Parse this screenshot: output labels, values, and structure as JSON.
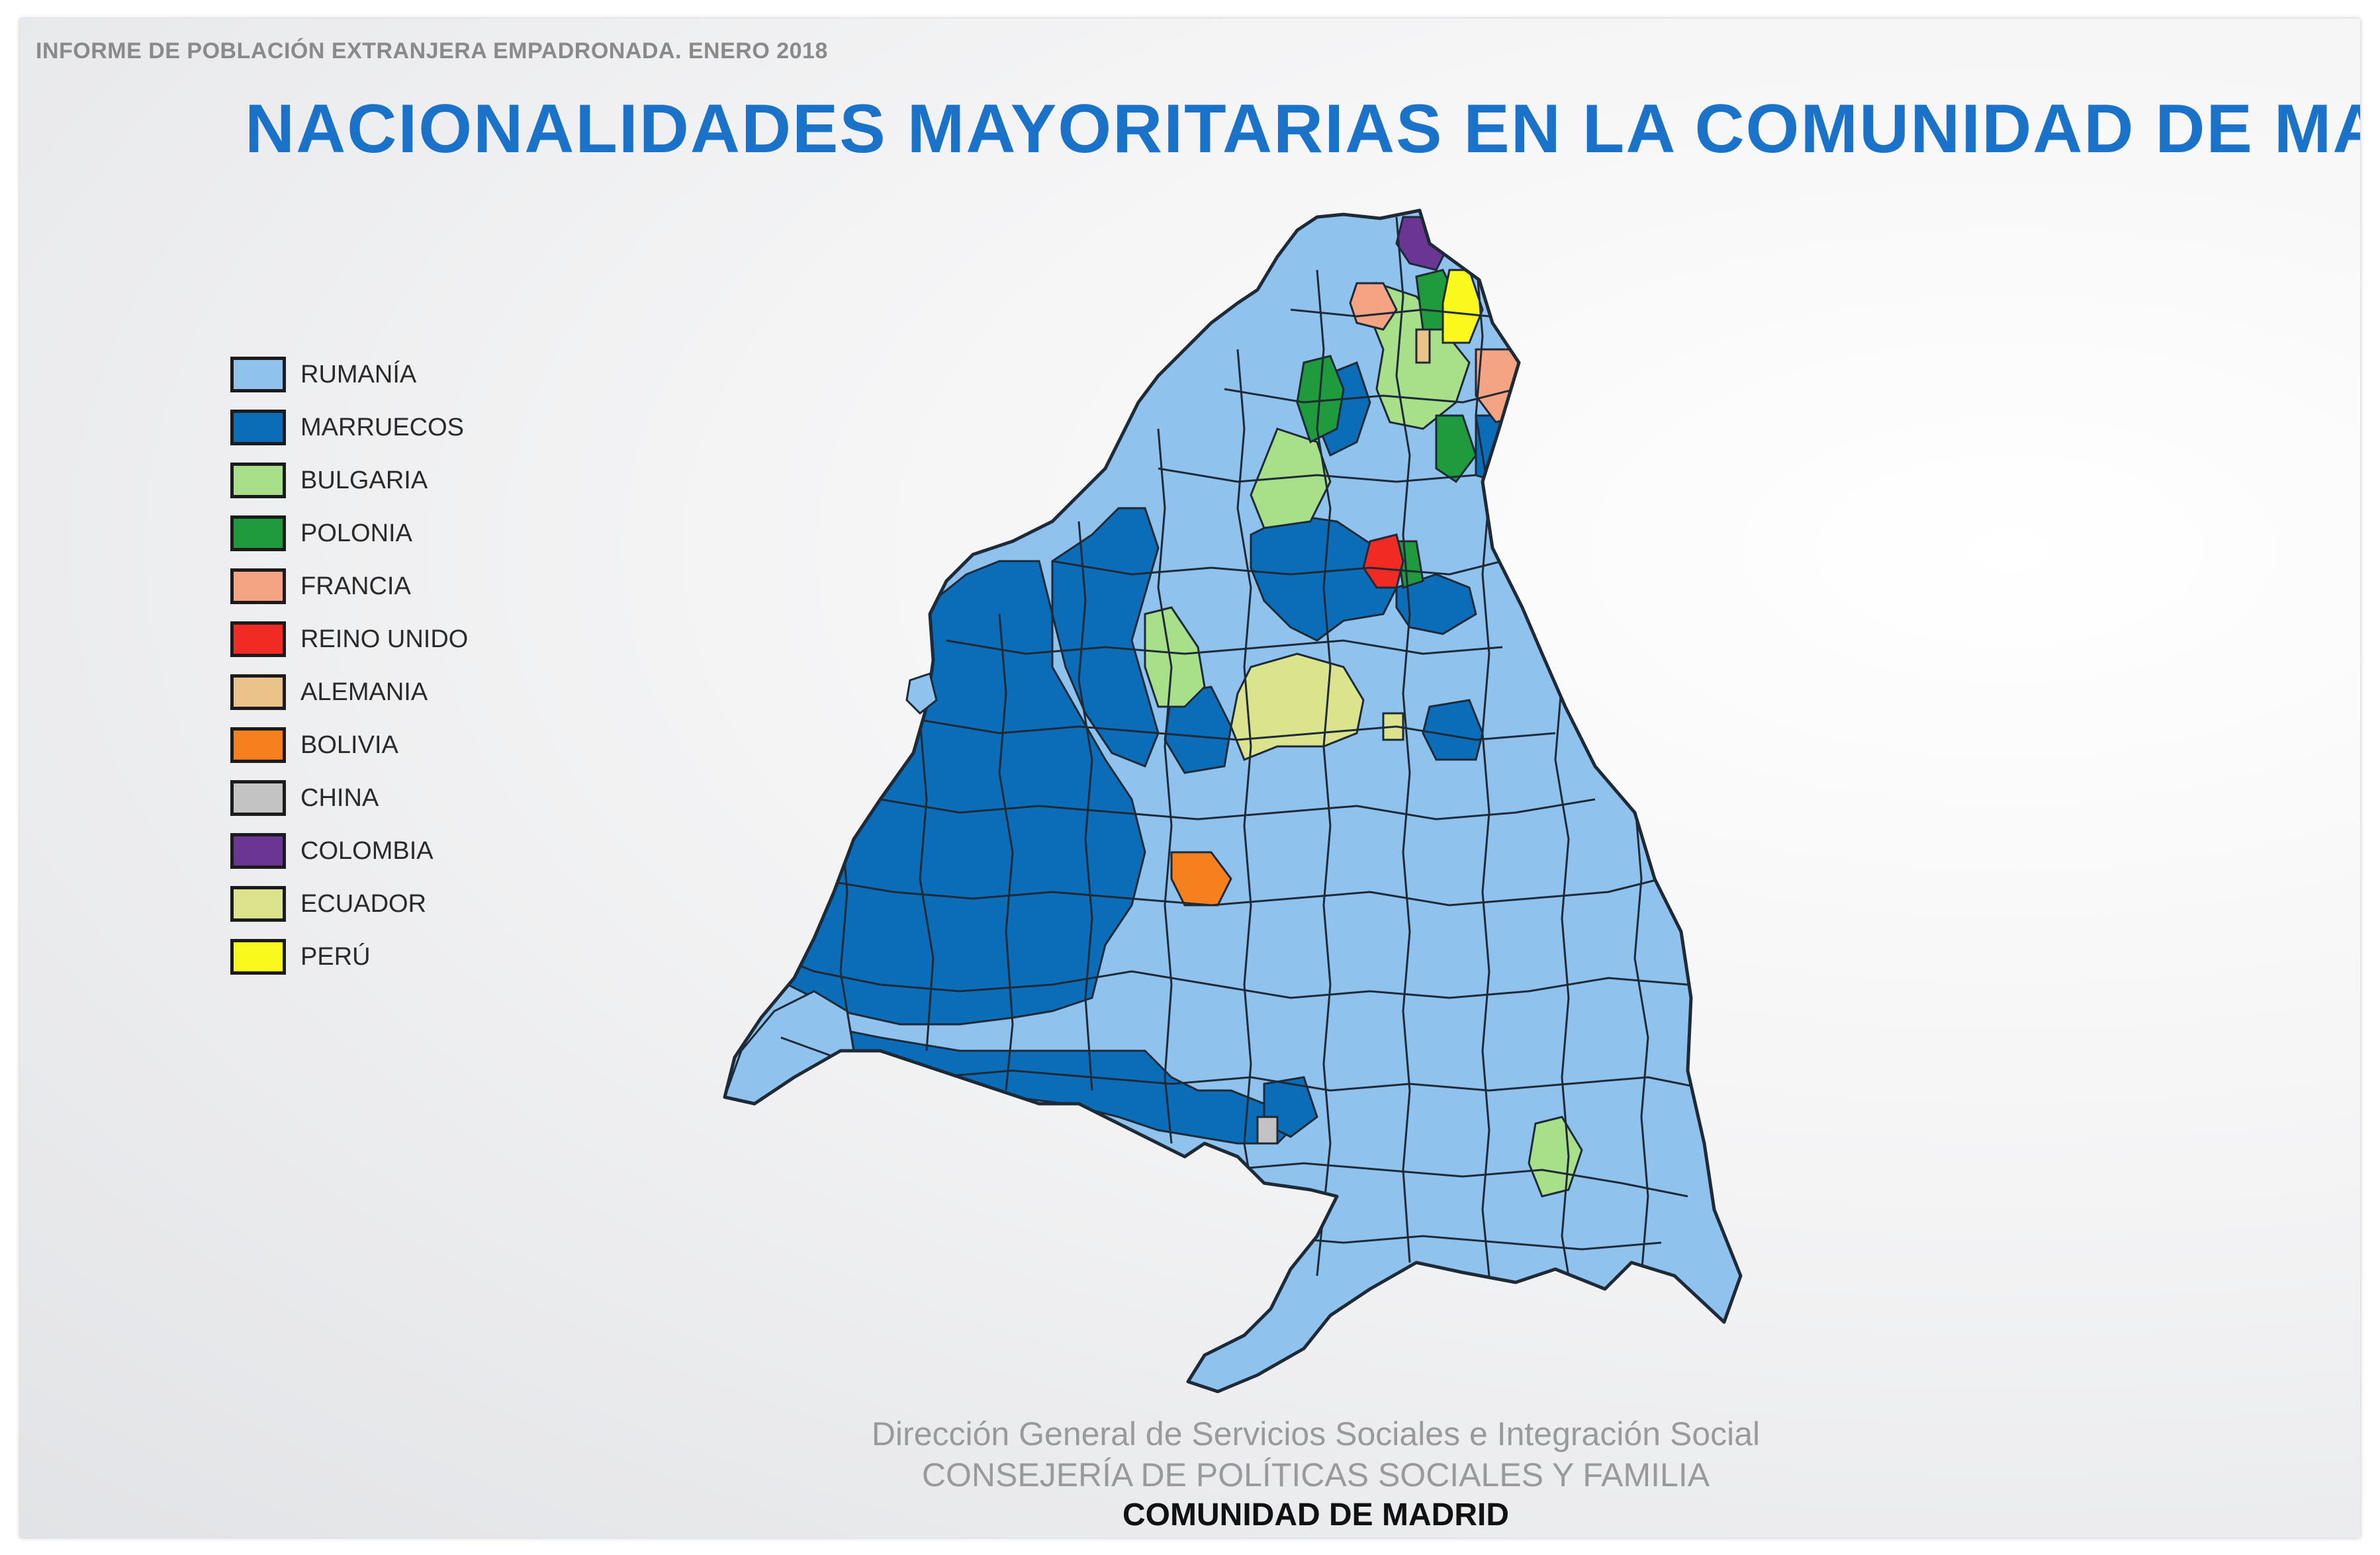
{
  "header": {
    "report_label": "INFORME DE POBLACIÓN  EXTRANJERA EMPADRONADA. ENERO 2018",
    "title": "NACIONALIDADES MAYORITARIAS EN LA COMUNIDAD DE MADRID"
  },
  "legend": [
    {
      "key": "rumania",
      "label": "RUMANÍA",
      "color": "#8fc3ee"
    },
    {
      "key": "marruecos",
      "label": "MARRUECOS",
      "color": "#0b6db8"
    },
    {
      "key": "bulgaria",
      "label": "BULGARIA",
      "color": "#a8e08a"
    },
    {
      "key": "polonia",
      "label": "POLONIA",
      "color": "#1f9a3c"
    },
    {
      "key": "francia",
      "label": "FRANCIA",
      "color": "#f4a383"
    },
    {
      "key": "reino_unido",
      "label": "REINO UNIDO",
      "color": "#f22a24"
    },
    {
      "key": "alemania",
      "label": "ALEMANIA",
      "color": "#e9c38a"
    },
    {
      "key": "bolivia",
      "label": "BOLIVIA",
      "color": "#f7801e"
    },
    {
      "key": "china",
      "label": "CHINA",
      "color": "#c3c3c3"
    },
    {
      "key": "colombia",
      "label": "COLOMBIA",
      "color": "#6b3594"
    },
    {
      "key": "ecuador",
      "label": "ECUADOR",
      "color": "#dbe48c"
    },
    {
      "key": "peru",
      "label": "PERÚ",
      "color": "#fbf81e"
    }
  ],
  "map": {
    "border_color": "#1e2a36",
    "base_category": "rumania"
  },
  "footer": {
    "line1": "Dirección General de Servicios Sociales e Integración Social",
    "line2": "CONSEJERÍA DE  POLÍTICAS SOCIALES Y FAMILIA",
    "line3": "COMUNIDAD DE MADRID"
  }
}
